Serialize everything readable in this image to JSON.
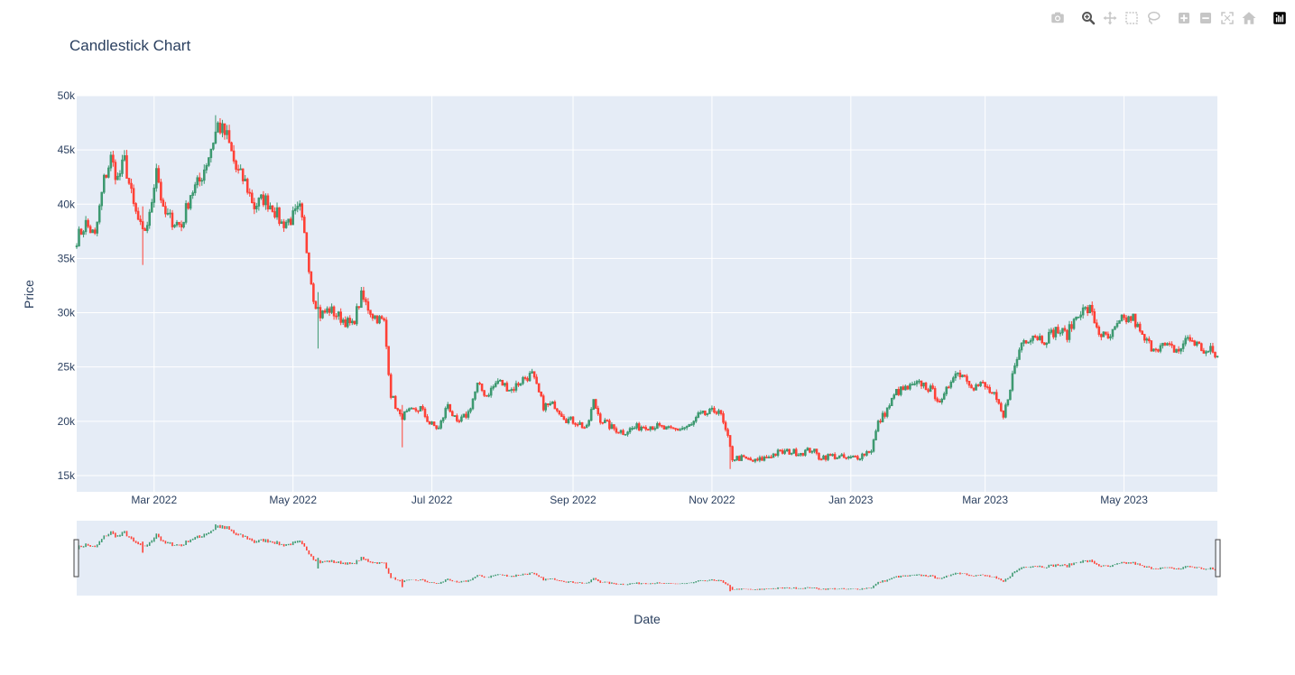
{
  "title": "Candlestick Chart",
  "toolbar": {
    "buttons": [
      {
        "name": "camera-icon",
        "label": "Download plot as a png"
      },
      {
        "name": "zoom-icon",
        "label": "Zoom"
      },
      {
        "name": "pan-icon",
        "label": "Pan"
      },
      {
        "name": "box-select-icon",
        "label": "Box Select"
      },
      {
        "name": "lasso-select-icon",
        "label": "Lasso Select"
      },
      {
        "name": "zoom-in-icon",
        "label": "Zoom in"
      },
      {
        "name": "zoom-out-icon",
        "label": "Zoom out"
      },
      {
        "name": "autoscale-icon",
        "label": "Autoscale"
      },
      {
        "name": "reset-axes-icon",
        "label": "Reset axes"
      },
      {
        "name": "plotly-logo-icon",
        "label": "Produced with Plotly"
      }
    ],
    "icon_color": "#c6c6c6",
    "active_color": "#555555"
  },
  "colors": {
    "plot_bg": "#e5ecf6",
    "grid": "#ffffff",
    "increasing": "#3d9970",
    "decreasing": "#ff4136"
  },
  "chart_data": {
    "type": "candlestick",
    "title": "Candlestick Chart",
    "xlabel": "Date",
    "ylabel": "Price",
    "xlim": [
      "2022-01-26",
      "2023-06-11"
    ],
    "ylim": [
      13500,
      50000
    ],
    "ytick_values": [
      15000,
      20000,
      25000,
      30000,
      35000,
      40000,
      45000,
      50000
    ],
    "ytick_labels": [
      "15k",
      "20k",
      "25k",
      "30k",
      "35k",
      "40k",
      "45k",
      "50k"
    ],
    "xtick_values": [
      "2022-03-01",
      "2022-05-01",
      "2022-07-01",
      "2022-09-01",
      "2022-11-01",
      "2023-01-01",
      "2023-03-01",
      "2023-05-01"
    ],
    "xtick_labels": [
      "Mar 2022",
      "May 2022",
      "Jul 2022",
      "Sep 2022",
      "Nov 2022",
      "Jan 2023",
      "Mar 2023",
      "May 2023"
    ],
    "grid": true,
    "rangeslider": true,
    "close_path": [
      [
        "2022-01-26",
        36800
      ],
      [
        "2022-01-30",
        38200
      ],
      [
        "2022-02-03",
        37000
      ],
      [
        "2022-02-07",
        42200
      ],
      [
        "2022-02-10",
        44200
      ],
      [
        "2022-02-13",
        42300
      ],
      [
        "2022-02-16",
        44000
      ],
      [
        "2022-02-20",
        39800
      ],
      [
        "2022-02-24",
        37200
      ],
      [
        "2022-02-27",
        38800
      ],
      [
        "2022-03-02",
        43600
      ],
      [
        "2022-03-05",
        39200
      ],
      [
        "2022-03-09",
        38500
      ],
      [
        "2022-03-13",
        38000
      ],
      [
        "2022-03-17",
        41000
      ],
      [
        "2022-03-21",
        42100
      ],
      [
        "2022-03-25",
        44500
      ],
      [
        "2022-03-29",
        47300
      ],
      [
        "2022-04-02",
        46200
      ],
      [
        "2022-04-06",
        43200
      ],
      [
        "2022-04-10",
        42000
      ],
      [
        "2022-04-14",
        39800
      ],
      [
        "2022-04-18",
        40500
      ],
      [
        "2022-04-22",
        39800
      ],
      [
        "2022-04-26",
        38200
      ],
      [
        "2022-04-30",
        38600
      ],
      [
        "2022-05-04",
        39500
      ],
      [
        "2022-05-07",
        35800
      ],
      [
        "2022-05-10",
        31500
      ],
      [
        "2022-05-13",
        29800
      ],
      [
        "2022-05-17",
        30300
      ],
      [
        "2022-05-22",
        29500
      ],
      [
        "2022-05-27",
        28800
      ],
      [
        "2022-05-31",
        31500
      ],
      [
        "2022-06-05",
        29800
      ],
      [
        "2022-06-10",
        29100
      ],
      [
        "2022-06-13",
        22500
      ],
      [
        "2022-06-17",
        20400
      ],
      [
        "2022-06-21",
        20800
      ],
      [
        "2022-06-26",
        21200
      ],
      [
        "2022-06-30",
        19800
      ],
      [
        "2022-07-04",
        19300
      ],
      [
        "2022-07-08",
        21600
      ],
      [
        "2022-07-12",
        19700
      ],
      [
        "2022-07-17",
        20800
      ],
      [
        "2022-07-21",
        23300
      ],
      [
        "2022-07-25",
        22400
      ],
      [
        "2022-07-30",
        23700
      ],
      [
        "2022-08-05",
        22900
      ],
      [
        "2022-08-10",
        23900
      ],
      [
        "2022-08-14",
        24300
      ],
      [
        "2022-08-19",
        21400
      ],
      [
        "2022-08-24",
        21500
      ],
      [
        "2022-08-29",
        20200
      ],
      [
        "2022-09-03",
        19900
      ],
      [
        "2022-09-07",
        19300
      ],
      [
        "2022-09-10",
        21800
      ],
      [
        "2022-09-13",
        20200
      ],
      [
        "2022-09-18",
        19400
      ],
      [
        "2022-09-23",
        19000
      ],
      [
        "2022-09-28",
        19400
      ],
      [
        "2022-10-03",
        19600
      ],
      [
        "2022-10-08",
        19500
      ],
      [
        "2022-10-13",
        19200
      ],
      [
        "2022-10-18",
        19300
      ],
      [
        "2022-10-23",
        19600
      ],
      [
        "2022-10-26",
        20500
      ],
      [
        "2022-10-30",
        20700
      ],
      [
        "2022-11-04",
        21100
      ],
      [
        "2022-11-08",
        18400
      ],
      [
        "2022-11-10",
        16600
      ],
      [
        "2022-11-14",
        16600
      ],
      [
        "2022-11-20",
        16300
      ],
      [
        "2022-11-24",
        16600
      ],
      [
        "2022-11-30",
        17100
      ],
      [
        "2022-12-05",
        17200
      ],
      [
        "2022-12-10",
        17100
      ],
      [
        "2022-12-15",
        17400
      ],
      [
        "2022-12-18",
        16700
      ],
      [
        "2022-12-24",
        16800
      ],
      [
        "2022-12-31",
        16550
      ],
      [
        "2023-01-05",
        16800
      ],
      [
        "2023-01-10",
        17400
      ],
      [
        "2023-01-13",
        19800
      ],
      [
        "2023-01-17",
        21100
      ],
      [
        "2023-01-21",
        22700
      ],
      [
        "2023-01-27",
        23100
      ],
      [
        "2023-02-01",
        23500
      ],
      [
        "2023-02-05",
        22900
      ],
      [
        "2023-02-10",
        21700
      ],
      [
        "2023-02-15",
        24400
      ],
      [
        "2023-02-19",
        24400
      ],
      [
        "2023-02-24",
        23200
      ],
      [
        "2023-02-28",
        23400
      ],
      [
        "2023-03-05",
        22300
      ],
      [
        "2023-03-09",
        20300
      ],
      [
        "2023-03-13",
        24200
      ],
      [
        "2023-03-17",
        27300
      ],
      [
        "2023-03-22",
        28000
      ],
      [
        "2023-03-27",
        27500
      ],
      [
        "2023-04-01",
        28400
      ],
      [
        "2023-04-06",
        28000
      ],
      [
        "2023-04-11",
        30100
      ],
      [
        "2023-04-16",
        30300
      ],
      [
        "2023-04-20",
        28200
      ],
      [
        "2023-04-24",
        27500
      ],
      [
        "2023-04-30",
        29300
      ],
      [
        "2023-05-05",
        29500
      ],
      [
        "2023-05-09",
        27700
      ],
      [
        "2023-05-13",
        26900
      ],
      [
        "2023-05-19",
        26900
      ],
      [
        "2023-05-25",
        26500
      ],
      [
        "2023-05-29",
        27700
      ],
      [
        "2023-06-02",
        27100
      ],
      [
        "2023-06-06",
        26300
      ],
      [
        "2023-06-08",
        26500
      ],
      [
        "2023-06-11",
        25900
      ]
    ],
    "notable_wicks": [
      {
        "x": "2022-02-24",
        "low": 34400,
        "high": 39800
      },
      {
        "x": "2022-03-28",
        "high": 48200,
        "low": 46800
      },
      {
        "x": "2022-05-12",
        "low": 26700,
        "high": 31900
      },
      {
        "x": "2022-06-18",
        "low": 17600,
        "high": 21500
      },
      {
        "x": "2022-11-09",
        "low": 15600,
        "high": 18600
      }
    ]
  },
  "rangeslider": {
    "ylim": [
      13500,
      50000
    ]
  }
}
